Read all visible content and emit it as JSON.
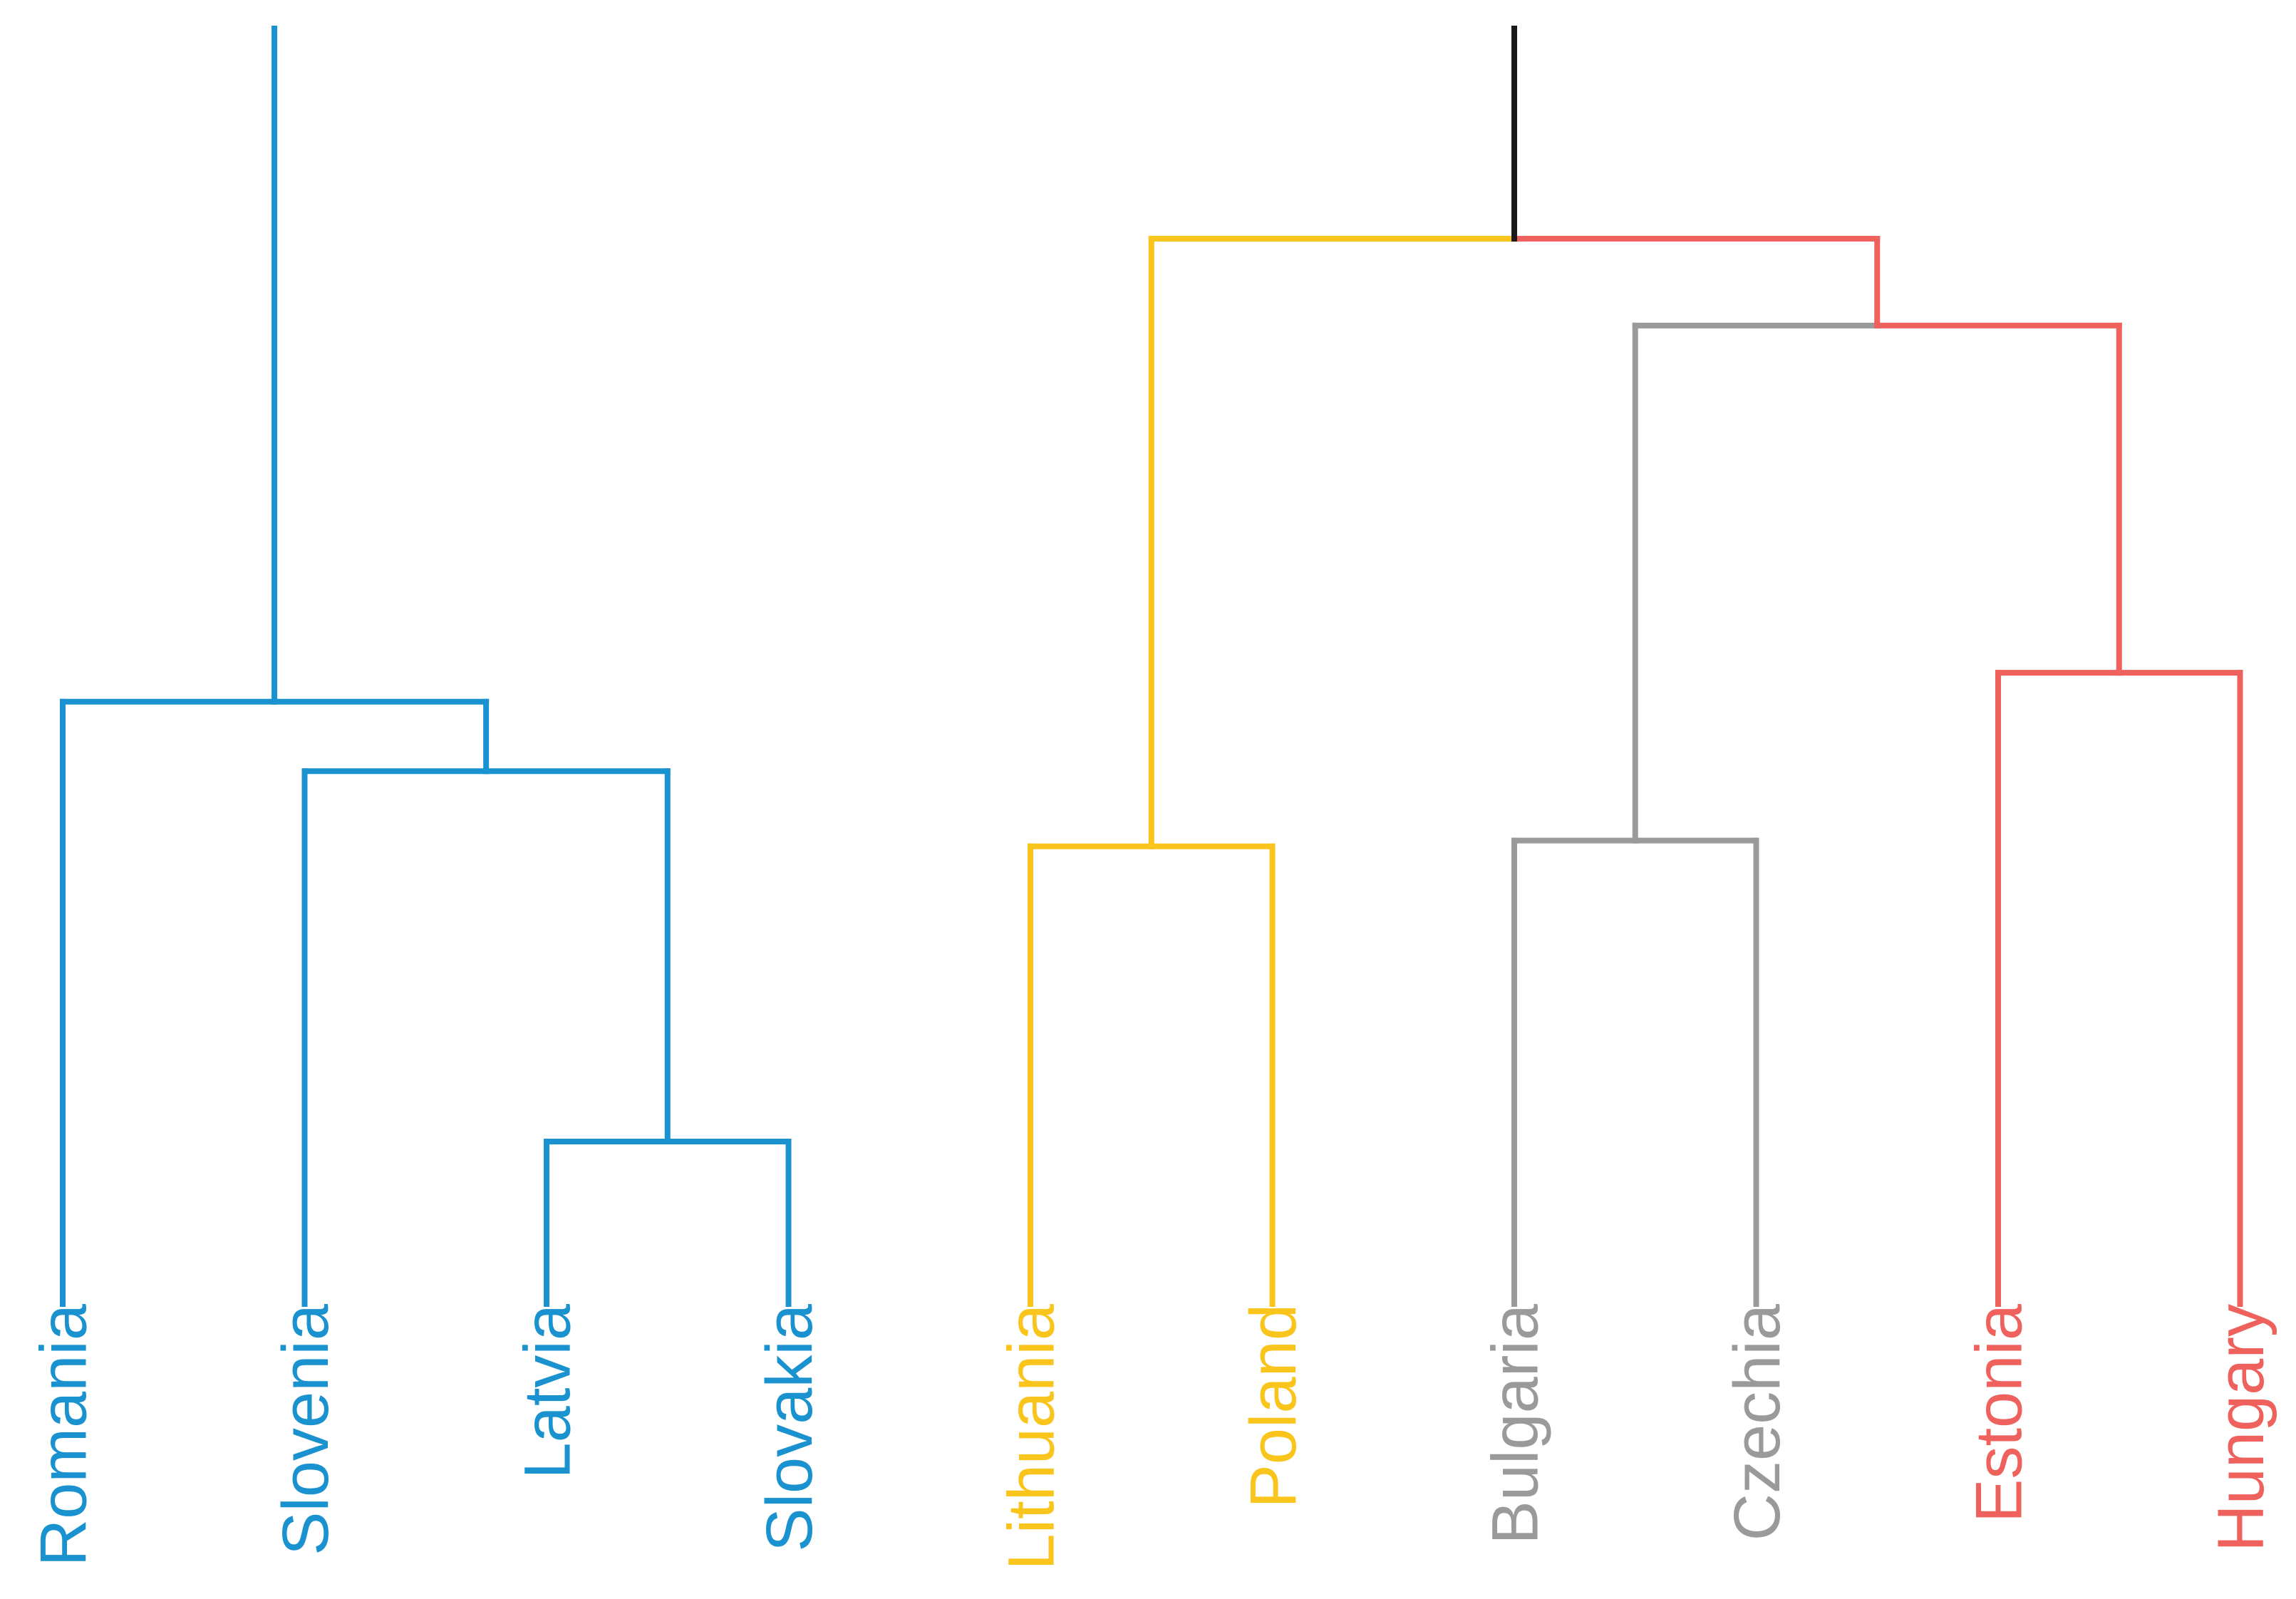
{
  "colors": {
    "cluster1": "#1a92cf",
    "cluster2": "#f9c41b",
    "cluster3": "#9a9a9a",
    "cluster4": "#ee615d",
    "root": "#1a1a1a"
  },
  "leaves": [
    {
      "label": "Romania",
      "cluster": "cluster1"
    },
    {
      "label": "Slovenia",
      "cluster": "cluster1"
    },
    {
      "label": "Latvia",
      "cluster": "cluster1"
    },
    {
      "label": "Slovakia",
      "cluster": "cluster1"
    },
    {
      "label": "Lithuania",
      "cluster": "cluster2"
    },
    {
      "label": "Poland",
      "cluster": "cluster2"
    },
    {
      "label": "Bulgaria",
      "cluster": "cluster3"
    },
    {
      "label": "Czechia",
      "cluster": "cluster3"
    },
    {
      "label": "Estonia",
      "cluster": "cluster4"
    },
    {
      "label": "Hungary",
      "cluster": "cluster4"
    }
  ],
  "merges": [
    {
      "id": "latvia-slovakia",
      "left": "Latvia",
      "right": "Slovakia",
      "height": 0.27,
      "color": "cluster1"
    },
    {
      "id": "slovenia-group",
      "left": "Slovenia",
      "right": "latvia-slovakia",
      "height": 0.59,
      "color": "cluster1"
    },
    {
      "id": "romania-group",
      "left": "Romania",
      "right": "slovenia-group",
      "height": 0.65,
      "color": "cluster1"
    },
    {
      "id": "bulgaria-czechia",
      "left": "Bulgaria",
      "right": "Czechia",
      "height": 0.53,
      "color": "cluster3"
    },
    {
      "id": "lithuania-poland",
      "left": "Lithuania",
      "right": "Poland",
      "height": 0.525,
      "color": "cluster2"
    },
    {
      "id": "estonia-hungary",
      "left": "Estonia",
      "right": "Hungary",
      "height": 0.675,
      "color": "cluster4"
    },
    {
      "id": "gray-red",
      "left": "bulgaria-czechia",
      "right": "estonia-hungary",
      "height": 0.975,
      "color": "cluster4"
    },
    {
      "id": "yellow-grayred",
      "left": "lithuania-poland",
      "right": "gray-red",
      "height": 1.05,
      "color": "root"
    },
    {
      "id": "top",
      "left": "romania-group",
      "right": "yellow-grayred",
      "height": 1.25,
      "color": "root"
    }
  ]
}
